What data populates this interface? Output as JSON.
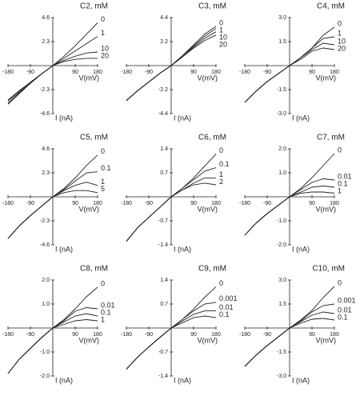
{
  "chart_data": [
    {
      "type": "line",
      "title": "C2, mM",
      "xlabel": "V(mV)",
      "ylabel": "I (nA)",
      "color": "#222",
      "x": [
        -180,
        -135,
        -90,
        -45,
        0,
        45,
        90,
        135,
        180
      ],
      "xlim": [
        -180,
        180
      ],
      "xticks": [
        -180,
        -90,
        90,
        180
      ],
      "ylim": [
        -4.6,
        4.6
      ],
      "yticks": [
        4.6,
        2.3,
        -2.3,
        -4.6
      ],
      "series": [
        {
          "name": "0",
          "values": [
            -3.3,
            -2.4,
            -1.6,
            -0.8,
            0,
            0.9,
            1.9,
            3.0,
            4.1
          ]
        },
        {
          "name": "1",
          "values": [
            -3.4,
            -2.5,
            -1.6,
            -0.8,
            0,
            0.7,
            1.4,
            2.1,
            2.8
          ]
        },
        {
          "name": "10",
          "values": [
            -3.6,
            -2.6,
            -1.7,
            -0.8,
            0,
            0.5,
            0.9,
            1.2,
            1.3
          ]
        },
        {
          "name": "20",
          "values": [
            -3.7,
            -2.7,
            -1.7,
            -0.8,
            0,
            0.4,
            0.6,
            0.7,
            0.7
          ]
        }
      ]
    },
    {
      "type": "line",
      "title": "C3, mM",
      "xlabel": "V(mV)",
      "ylabel": "I (nA)",
      "color": "#222",
      "x": [
        -180,
        -135,
        -90,
        -45,
        0,
        45,
        90,
        135,
        180
      ],
      "xlim": [
        -180,
        180
      ],
      "xticks": [
        -180,
        -90,
        90,
        180
      ],
      "ylim": [
        -4.4,
        4.4
      ],
      "yticks": [
        4.4,
        2.2,
        -2.2,
        -4.4
      ],
      "series": [
        {
          "name": "0",
          "values": [
            -3.2,
            -2.3,
            -1.5,
            -0.7,
            0,
            0.9,
            1.9,
            2.9,
            3.6
          ]
        },
        {
          "name": "1",
          "values": [
            -3.2,
            -2.3,
            -1.5,
            -0.7,
            0,
            0.9,
            1.8,
            2.7,
            3.4
          ]
        },
        {
          "name": "10",
          "values": [
            -3.2,
            -2.3,
            -1.5,
            -0.7,
            0,
            0.8,
            1.7,
            2.5,
            3.1
          ]
        },
        {
          "name": "20",
          "values": [
            -3.2,
            -2.3,
            -1.5,
            -0.7,
            0,
            0.8,
            1.6,
            2.3,
            2.8
          ]
        }
      ]
    },
    {
      "type": "line",
      "title": "C4, mM",
      "xlabel": "V(mV)",
      "ylabel": "I (nA)",
      "color": "#222",
      "x": [
        -180,
        -135,
        -90,
        -45,
        0,
        45,
        90,
        135,
        180
      ],
      "xlim": [
        -180,
        180
      ],
      "xticks": [
        -180,
        -90,
        90,
        180
      ],
      "ylim": [
        -3,
        3
      ],
      "yticks": [
        {
          "value": 3,
          "label": "3.0"
        },
        1.5,
        -1.5,
        {
          "value": -3,
          "label": "-3.0"
        }
      ],
      "series": [
        {
          "name": "0",
          "values": [
            -2.3,
            -1.6,
            -1.0,
            -0.5,
            0,
            0.5,
            1.1,
            1.9,
            2.4
          ]
        },
        {
          "name": "1",
          "values": [
            -2.3,
            -1.6,
            -1.0,
            -0.5,
            0,
            0.5,
            1.1,
            1.7,
            1.8
          ]
        },
        {
          "name": "10",
          "values": [
            -2.3,
            -1.6,
            -1.0,
            -0.5,
            0,
            0.5,
            1.0,
            1.4,
            1.3
          ]
        },
        {
          "name": "20",
          "values": [
            -2.3,
            -1.6,
            -1.0,
            -0.5,
            0,
            0.4,
            0.9,
            1.1,
            1.0
          ]
        }
      ]
    },
    {
      "type": "line",
      "title": "C5, mM",
      "xlabel": "V(mV)",
      "ylabel": "I (nA)",
      "color": "#222",
      "x": [
        -180,
        -135,
        -90,
        -45,
        0,
        45,
        90,
        135,
        180
      ],
      "xlim": [
        -180,
        180
      ],
      "xticks": [
        -180,
        -90,
        90,
        180
      ],
      "ylim": [
        -4.6,
        4.6
      ],
      "yticks": [
        4.6,
        2.3,
        -2.3,
        -4.6
      ],
      "series": [
        {
          "name": "0",
          "values": [
            -4.0,
            -2.8,
            -1.8,
            -0.9,
            0,
            0.8,
            1.8,
            3.0,
            4.0
          ]
        },
        {
          "name": "0.1",
          "values": [
            -4.0,
            -2.8,
            -1.8,
            -0.9,
            0,
            0.7,
            1.5,
            2.3,
            2.4
          ]
        },
        {
          "name": "1",
          "values": [
            -4.0,
            -2.8,
            -1.8,
            -0.9,
            0,
            0.6,
            1.1,
            1.4,
            1.1
          ]
        },
        {
          "name": "5",
          "values": [
            -4.0,
            -2.8,
            -1.8,
            -0.9,
            0,
            0.4,
            0.6,
            0.6,
            0.4
          ]
        }
      ]
    },
    {
      "type": "line",
      "title": "C6, mM",
      "xlabel": "V(mV)",
      "ylabel": "I (nA)",
      "color": "#222",
      "x": [
        -180,
        -135,
        -90,
        -45,
        0,
        45,
        90,
        135,
        180
      ],
      "xlim": [
        -180,
        180
      ],
      "xticks": [
        -180,
        -90,
        90,
        180
      ],
      "ylim": [
        -1.4,
        1.4
      ],
      "yticks": [
        1.4,
        0.7,
        -0.7,
        -1.4
      ],
      "series": [
        {
          "name": "0",
          "values": [
            -1.3,
            -0.9,
            -0.6,
            -0.3,
            0,
            0.25,
            0.55,
            0.9,
            1.25
          ]
        },
        {
          "name": "0.1",
          "values": [
            -1.3,
            -0.9,
            -0.6,
            -0.3,
            0,
            0.25,
            0.5,
            0.75,
            0.85
          ]
        },
        {
          "name": "1",
          "values": [
            -1.3,
            -0.9,
            -0.6,
            -0.3,
            0,
            0.2,
            0.4,
            0.55,
            0.55
          ]
        },
        {
          "name": "2",
          "values": [
            -1.3,
            -0.9,
            -0.6,
            -0.3,
            0,
            0.2,
            0.35,
            0.4,
            0.35
          ]
        }
      ]
    },
    {
      "type": "line",
      "title": "C7, mM",
      "xlabel": "V(mV)",
      "ylabel": "I (nA)",
      "color": "#222",
      "x": [
        -180,
        -135,
        -90,
        -45,
        0,
        45,
        90,
        135,
        180
      ],
      "xlim": [
        -180,
        180
      ],
      "xticks": [
        -180,
        -90,
        90,
        180
      ],
      "ylim": [
        -2,
        2
      ],
      "yticks": [
        {
          "value": 2,
          "label": "2.0"
        },
        {
          "value": 1,
          "label": "1.0"
        },
        {
          "value": -1,
          "label": "-1.0"
        },
        {
          "value": -2,
          "label": "-2.0"
        }
      ],
      "series": [
        {
          "name": "0",
          "values": [
            -1.6,
            -1.1,
            -0.7,
            -0.35,
            0,
            0.35,
            0.8,
            1.3,
            1.8
          ]
        },
        {
          "name": "0.01",
          "values": [
            -1.6,
            -1.1,
            -0.7,
            -0.35,
            0,
            0.3,
            0.6,
            0.75,
            0.7
          ]
        },
        {
          "name": "0.1",
          "values": [
            -1.6,
            -1.1,
            -0.7,
            -0.35,
            0,
            0.2,
            0.4,
            0.45,
            0.4
          ]
        },
        {
          "name": "1",
          "values": [
            -1.6,
            -1.1,
            -0.7,
            -0.35,
            0,
            0.15,
            0.2,
            0.2,
            0.15
          ]
        }
      ]
    },
    {
      "type": "line",
      "title": "C8, mM",
      "xlabel": "V(mV)",
      "ylabel": "I (nA)",
      "color": "#222",
      "x": [
        -180,
        -135,
        -90,
        -45,
        0,
        45,
        90,
        135,
        180
      ],
      "xlim": [
        -180,
        180
      ],
      "xticks": [
        -180,
        -90,
        90,
        180
      ],
      "ylim": [
        -2,
        2
      ],
      "yticks": [
        {
          "value": 2,
          "label": "2.0"
        },
        {
          "value": 1,
          "label": "1.0"
        },
        {
          "value": -1,
          "label": "-1.0"
        },
        {
          "value": -2,
          "label": "-2.0"
        }
      ],
      "series": [
        {
          "name": "0",
          "values": [
            -1.9,
            -1.3,
            -0.85,
            -0.4,
            0,
            0.35,
            0.8,
            1.3,
            1.7
          ]
        },
        {
          "name": "0.01",
          "values": [
            -1.9,
            -1.3,
            -0.85,
            -0.4,
            0,
            0.3,
            0.7,
            0.85,
            0.8
          ]
        },
        {
          "name": "0.1",
          "values": [
            -1.9,
            -1.3,
            -0.85,
            -0.4,
            0,
            0.25,
            0.5,
            0.6,
            0.5
          ]
        },
        {
          "name": "1",
          "values": [
            -1.9,
            -1.3,
            -0.85,
            -0.4,
            0,
            0.15,
            0.3,
            0.35,
            0.3
          ]
        }
      ]
    },
    {
      "type": "line",
      "title": "C9, mM",
      "xlabel": "V(mV)",
      "ylabel": "I (nA)",
      "color": "#222",
      "x": [
        -180,
        -135,
        -90,
        -45,
        0,
        45,
        90,
        135,
        180
      ],
      "xlim": [
        -180,
        180
      ],
      "xticks": [
        -180,
        -90,
        90,
        180
      ],
      "ylim": [
        -1.4,
        1.4
      ],
      "yticks": [
        1.4,
        0.7,
        -0.7,
        -1.4
      ],
      "series": [
        {
          "name": "0",
          "values": [
            -1.2,
            -0.85,
            -0.55,
            -0.27,
            0,
            0.25,
            0.55,
            0.9,
            1.2
          ]
        },
        {
          "name": "0.001",
          "values": [
            -1.2,
            -0.85,
            -0.55,
            -0.27,
            0,
            0.25,
            0.5,
            0.7,
            0.75
          ]
        },
        {
          "name": "0.01",
          "values": [
            -1.2,
            -0.85,
            -0.55,
            -0.27,
            0,
            0.2,
            0.4,
            0.5,
            0.5
          ]
        },
        {
          "name": "0.1",
          "values": [
            -1.2,
            -0.85,
            -0.55,
            -0.27,
            0,
            0.15,
            0.3,
            0.35,
            0.3
          ]
        }
      ]
    },
    {
      "type": "line",
      "title": "C10, mM",
      "xlabel": "V(mV)",
      "ylabel": "I (nA)",
      "color": "#222",
      "x": [
        -180,
        -135,
        -90,
        -45,
        0,
        45,
        90,
        135,
        180
      ],
      "xlim": [
        -180,
        180
      ],
      "xticks": [
        -180,
        -90,
        90,
        180
      ],
      "ylim": [
        -3,
        3
      ],
      "yticks": [
        {
          "value": 3,
          "label": "3.0"
        },
        1.5,
        -1.5,
        {
          "value": -3,
          "label": "-3.0"
        }
      ],
      "series": [
        {
          "name": "0",
          "values": [
            -2.4,
            -1.7,
            -1.1,
            -0.55,
            0,
            0.5,
            1.1,
            1.9,
            2.6
          ]
        },
        {
          "name": "0.001",
          "values": [
            -2.4,
            -1.7,
            -1.1,
            -0.55,
            0,
            0.45,
            1.0,
            1.4,
            1.5
          ]
        },
        {
          "name": "0.01",
          "values": [
            -2.4,
            -1.7,
            -1.1,
            -0.55,
            0,
            0.4,
            0.8,
            1.0,
            0.9
          ]
        },
        {
          "name": "0.1",
          "values": [
            -2.4,
            -1.7,
            -1.1,
            -0.55,
            0,
            0.3,
            0.55,
            0.6,
            0.5
          ]
        }
      ]
    }
  ]
}
